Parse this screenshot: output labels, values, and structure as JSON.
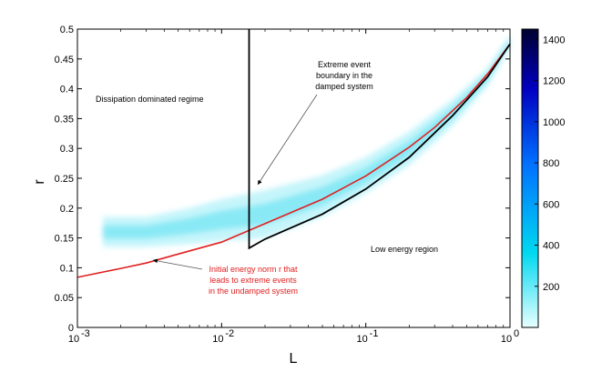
{
  "chart_data": {
    "type": "heatmap",
    "xlabel": "L",
    "ylabel": "r",
    "xscale": "log",
    "xlim": [
      0.001,
      1
    ],
    "ylim": [
      0,
      0.5
    ],
    "xticks": [
      {
        "value": 0.001,
        "base": "10",
        "exp": "-3"
      },
      {
        "value": 0.01,
        "base": "10",
        "exp": "-2"
      },
      {
        "value": 0.1,
        "base": "10",
        "exp": "-1"
      },
      {
        "value": 1,
        "base": "10",
        "exp": "0"
      }
    ],
    "yticks": [
      "0",
      "0.05",
      "0.1",
      "0.15",
      "0.2",
      "0.25",
      "0.3",
      "0.35",
      "0.4",
      "0.45",
      "0.5"
    ],
    "colorbar": {
      "min": 0,
      "max": 1450,
      "ticks": [
        "200",
        "400",
        "600",
        "800",
        "1000",
        "1200",
        "1400"
      ],
      "colors": [
        "#e8ffff",
        "#00d8f0",
        "#0070ff",
        "#0000c0",
        "#000030"
      ]
    },
    "red_curve": {
      "name": "Initial energy norm r that leads to extreme events in the undamped system",
      "color": "#e02020",
      "points": [
        [
          0.001,
          0.084
        ],
        [
          0.002,
          0.099
        ],
        [
          0.003,
          0.108
        ],
        [
          0.005,
          0.123
        ],
        [
          0.01,
          0.143
        ],
        [
          0.02,
          0.174
        ],
        [
          0.05,
          0.215
        ],
        [
          0.1,
          0.254
        ],
        [
          0.2,
          0.302
        ],
        [
          0.3,
          0.335
        ],
        [
          0.5,
          0.385
        ],
        [
          0.7,
          0.425
        ],
        [
          1.0,
          0.475
        ]
      ]
    },
    "black_boundary": {
      "name": "Extreme event boundary in the damped system",
      "color": "#000000",
      "points": [
        [
          0.0155,
          0.5
        ],
        [
          0.0155,
          0.133
        ],
        [
          0.02,
          0.148
        ],
        [
          0.05,
          0.19
        ],
        [
          0.1,
          0.232
        ],
        [
          0.2,
          0.285
        ],
        [
          0.4,
          0.355
        ],
        [
          0.7,
          0.42
        ],
        [
          1.0,
          0.475
        ]
      ]
    },
    "density_band": {
      "points": [
        [
          0.0015,
          0.16,
          0.025
        ],
        [
          0.003,
          0.16,
          0.025
        ],
        [
          0.006,
          0.17,
          0.03
        ],
        [
          0.01,
          0.18,
          0.035
        ],
        [
          0.02,
          0.19,
          0.04
        ],
        [
          0.05,
          0.22,
          0.035
        ],
        [
          0.1,
          0.255,
          0.03
        ],
        [
          0.2,
          0.3,
          0.028
        ],
        [
          0.4,
          0.36,
          0.022
        ],
        [
          0.7,
          0.42,
          0.015
        ],
        [
          1.0,
          0.48,
          0.01
        ]
      ]
    },
    "annotations": [
      {
        "id": "dissipation",
        "lines": [
          "Dissipation dominated regime"
        ],
        "color": "black"
      },
      {
        "id": "extreme-boundary",
        "lines": [
          "Extreme event",
          "boundary in the",
          "damped system"
        ],
        "color": "black"
      },
      {
        "id": "low-energy",
        "lines": [
          "Low energy region"
        ],
        "color": "black"
      },
      {
        "id": "initial-energy",
        "lines": [
          "Initial energy norm r that",
          "leads to extreme events",
          "in the undamped system"
        ],
        "color": "red"
      }
    ]
  }
}
